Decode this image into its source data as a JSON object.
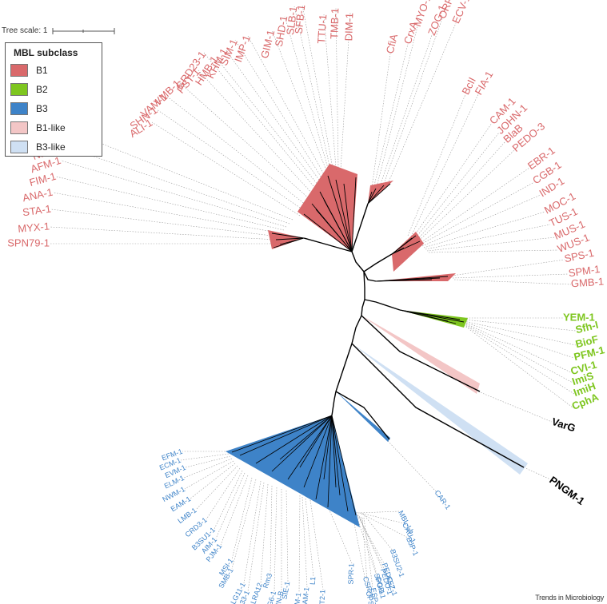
{
  "scale": {
    "label": "Tree scale: 1"
  },
  "legend": {
    "title": "MBL subclass",
    "items": [
      {
        "label": "B1",
        "color": "#d9696b"
      },
      {
        "label": "B2",
        "color": "#7ec61f"
      },
      {
        "label": "B3",
        "color": "#3e83c8"
      },
      {
        "label": "B1-like",
        "color": "#f3c6c6"
      },
      {
        "label": "B3-like",
        "color": "#cfe0f3"
      }
    ]
  },
  "colors": {
    "b1": "#d9696b",
    "b2": "#7ec61f",
    "b3": "#3e83c8",
    "b1like": "#f3c6c6",
    "b3like": "#cfe0f3",
    "dark": "#000000"
  },
  "leaves": {
    "b1": [
      "SPN79-1",
      "MYX-1",
      "STA-1",
      "ANA-1",
      "FIM-1",
      "AFM-1",
      "NDM-1",
      "VIM-1",
      "ALI-1",
      "SHN-1",
      "VAM-1",
      "VMB-1",
      "PST-1",
      "GRD23-1",
      "HMB-1",
      "KHM-1",
      "SIM-1",
      "IMP-1",
      "GIM-1",
      "SHD-1",
      "SLB-1",
      "SFB-1",
      "TTU-1",
      "TMB-1",
      "DIM-1",
      "CfiA",
      "CrxA",
      "MYO-1",
      "ZOG-1",
      "ORR-1",
      "ECV-1",
      "BcII",
      "FIA-1",
      "CAM-1",
      "JOHN-1",
      "BlaB",
      "PEDO-3",
      "EBR-1",
      "CGB-1",
      "IND-1",
      "MOC-1",
      "TUS-1",
      "MUS-1",
      "WUS-1",
      "SPS-1",
      "SPM-1",
      "GMB-1"
    ],
    "b2": [
      "YEM-1",
      "Sfh-I",
      "BioF",
      "PFM-1",
      "CVI-1",
      "ImiS",
      "ImiH",
      "CphA"
    ],
    "other": [
      "VarG",
      "PNGM-1"
    ],
    "b3": [
      "EFM-1",
      "ECM-1",
      "EVM-1",
      "ELM-1",
      "NWM-1",
      "EAM-1",
      "LMB-1",
      "CRD3-1",
      "B3SU1-1",
      "AIM-1",
      "PJM-1",
      "MSI-1",
      "SMB-1",
      "ALG11-1",
      "GRD33-1",
      "LRA12",
      "Rm3",
      "ALG6-1",
      "THIN-B",
      "SIE-1",
      "POM-1",
      "PAM-1",
      "L1",
      "DHT2-1",
      "SPR-1",
      "CSR-1",
      "SPG-1",
      "FEZ-1",
      "CAR-1",
      "MBL-Lb",
      "CAU-1",
      "BJP-1",
      "B3SU2-1",
      "PEDO-2",
      "PEDO-1",
      "GOB-1",
      "CPS-1",
      "ESP-1",
      "LMB-2",
      "RMB-1",
      "SMB-2",
      "CPD-1",
      "LCB-1",
      "CCP-1",
      "PMB-1",
      "BRP-1",
      "TMB-2",
      "OPH-1",
      "LRA-3",
      "AGR-1",
      "POL-1",
      "ALG1-1",
      "GRD1-1",
      "KPM-1",
      "EVM-2"
    ]
  },
  "footer": "Trends in Microbiology"
}
